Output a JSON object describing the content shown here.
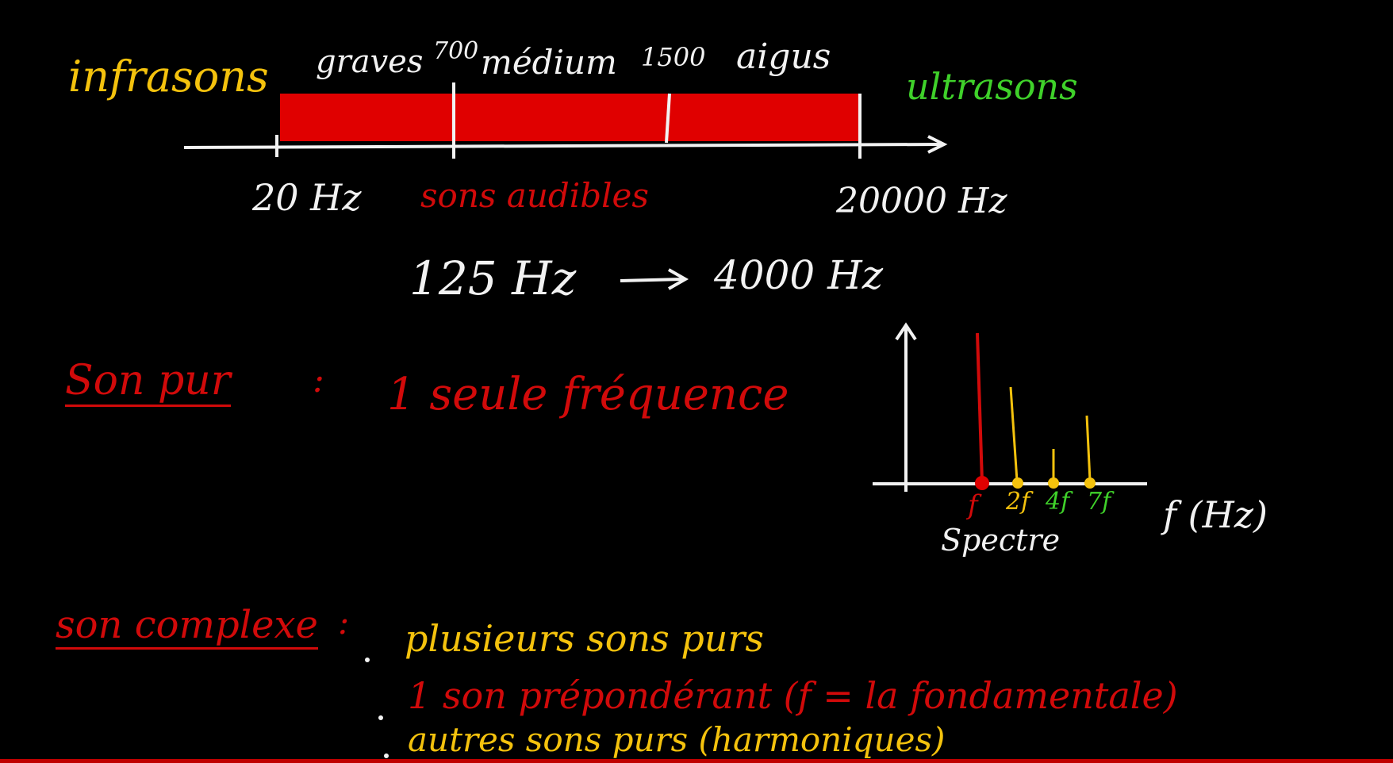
{
  "top_band": {
    "infrasons": "infrasons",
    "ultrasons": "ultrasons",
    "graves": "graves",
    "t700": "700",
    "medium": "médium",
    "t1500": "1500",
    "aigus": "aigus",
    "hz20": "20 Hz",
    "hz20000": "20000 Hz",
    "audibles": "sons audibles",
    "range_from": "125 Hz",
    "range_to": "4000 Hz"
  },
  "son_pur": {
    "label": "Son pur",
    "colon": ":",
    "desc": "1 seule fréquence"
  },
  "spectre": {
    "f": "f",
    "f2": "2f",
    "f4": "4f",
    "f7": "7f",
    "axis": "f (Hz)",
    "caption": "Spectre"
  },
  "son_complexe": {
    "label": "son complexe",
    "colon": ":",
    "line1": "plusieurs sons purs",
    "line2": "1 son prépondérant (f = la fondamentale)",
    "line3": "autres sons purs (harmoniques)"
  },
  "colors": {
    "band": "#e00000",
    "yellow": "#f4c20d",
    "green": "#3fd12a",
    "red": "#d10a0a",
    "white": "#f2f2f2"
  }
}
